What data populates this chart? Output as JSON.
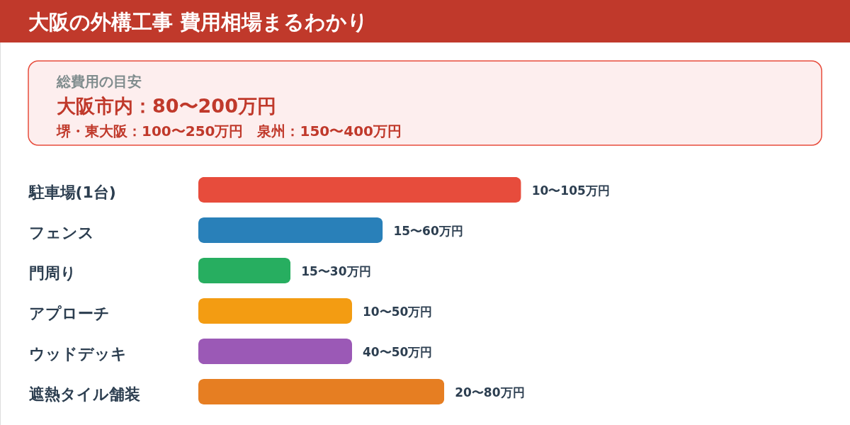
{
  "chart_data": {
    "type": "bar",
    "orientation": "horizontal",
    "title": "大阪の外構工事 費用相場まるわかり",
    "categories": [
      "駐車場(1台)",
      "フェンス",
      "門周り",
      "アプローチ",
      "ウッドデッキ",
      "遮熱タイル舗装"
    ],
    "values": [
      105,
      60,
      30,
      50,
      50,
      80
    ],
    "colors": [
      "#e74c3c",
      "#2980b9",
      "#27ae60",
      "#f39c12",
      "#9b59b6",
      "#e67e22"
    ],
    "value_labels": [
      "10〜105万円",
      "15〜60万円",
      "15〜30万円",
      "10〜50万円",
      "40〜50万円",
      "20〜80万円"
    ],
    "annotations": [
      "総費用の目安",
      "大阪市内：80〜200万円",
      "堺・東大阪：100〜250万円　泉州：150〜400万円"
    ]
  }
}
